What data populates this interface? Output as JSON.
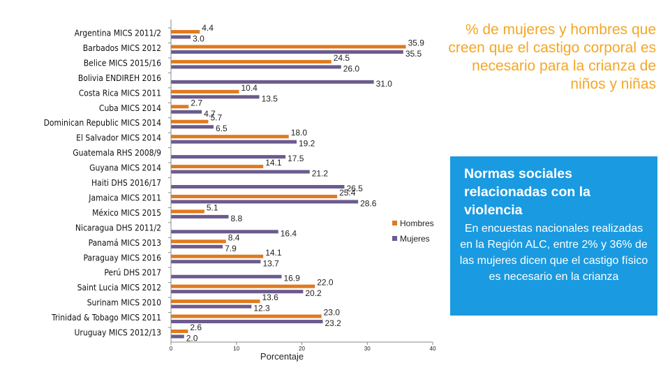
{
  "chart_data": {
    "type": "bar",
    "orientation": "horizontal",
    "title": "% de mujeres y hombres que creen que el castigo corporal es necesario para la crianza de niños y niñas",
    "xlabel": "Porcentaje",
    "ylabel": "",
    "xlim": [
      0,
      40
    ],
    "xticks": [
      "0",
      "10",
      "20",
      "30",
      "40"
    ],
    "legend_position": "right",
    "categories": [
      "Argentina MICS 2011/2",
      "Barbados MICS 2012",
      "Belice MICS 2015/16",
      "Bolivia ENDIREH 2016",
      "Costa Rica MICS 2011",
      "Cuba MICS 2014",
      "Dominican Republic MICS 2014",
      "El Salvador MICS 2014",
      "Guatemala RHS 2008/9",
      "Guyana MICS 2014",
      "Haiti DHS 2016/17",
      "Jamaica MICS 2011",
      "México MICS 2015",
      "Nicaragua DHS 2011/2",
      "Panamá MICS 2013",
      "Paraguay MICS 2016",
      "Perú DHS 2017",
      "Saint Lucia MICS 2012",
      "Surinam MICS 2010",
      "Trinidad & Tobago MICS 2011",
      "Uruguay MICS 2012/13"
    ],
    "series": [
      {
        "name": "Hombres",
        "color": "#E07A1F",
        "values": [
          4.4,
          35.9,
          24.5,
          null,
          10.4,
          2.7,
          5.7,
          18.0,
          null,
          14.1,
          null,
          25.4,
          5.1,
          null,
          8.4,
          14.1,
          null,
          22.0,
          13.6,
          23.0,
          2.6
        ],
        "labels": [
          "4.4",
          "35.9",
          "24.5",
          "",
          "10.4",
          "2.7",
          "5.7",
          "18.0",
          "",
          "14.1",
          "",
          "25.4",
          "5.1",
          "",
          "8.4",
          "14.1",
          "",
          "22.0",
          "13.6",
          "23.0",
          "2.6"
        ]
      },
      {
        "name": "Mujeres",
        "color": "#6B5B8E",
        "values": [
          3.0,
          35.5,
          26.0,
          31.0,
          13.5,
          4.7,
          6.5,
          19.2,
          17.5,
          21.2,
          26.5,
          28.6,
          8.8,
          16.4,
          7.9,
          13.7,
          16.9,
          20.2,
          12.3,
          23.2,
          2.0
        ],
        "labels": [
          "3.0",
          "35.5",
          "26.0",
          "31.0",
          "13.5",
          "4.7",
          "6.5",
          "19.2",
          "17.5",
          "21.2",
          "26.5",
          "28.6",
          "8.8",
          "16.4",
          "7.9",
          "13.7",
          "16.9",
          "20.2",
          "12.3",
          "23.2",
          "2.0"
        ]
      }
    ]
  },
  "info_box": {
    "title": "Normas sociales relacionadas con la violencia",
    "body": "En encuestas nacionales realizadas en la Región ALC, entre 2% y 36% de las mujeres dicen que el castigo físico es necesario en la crianza",
    "background": "#1a9ae0"
  },
  "colors": {
    "title": "#F5A623",
    "hombres": "#E07A1F",
    "mujeres": "#6B5B8E"
  }
}
